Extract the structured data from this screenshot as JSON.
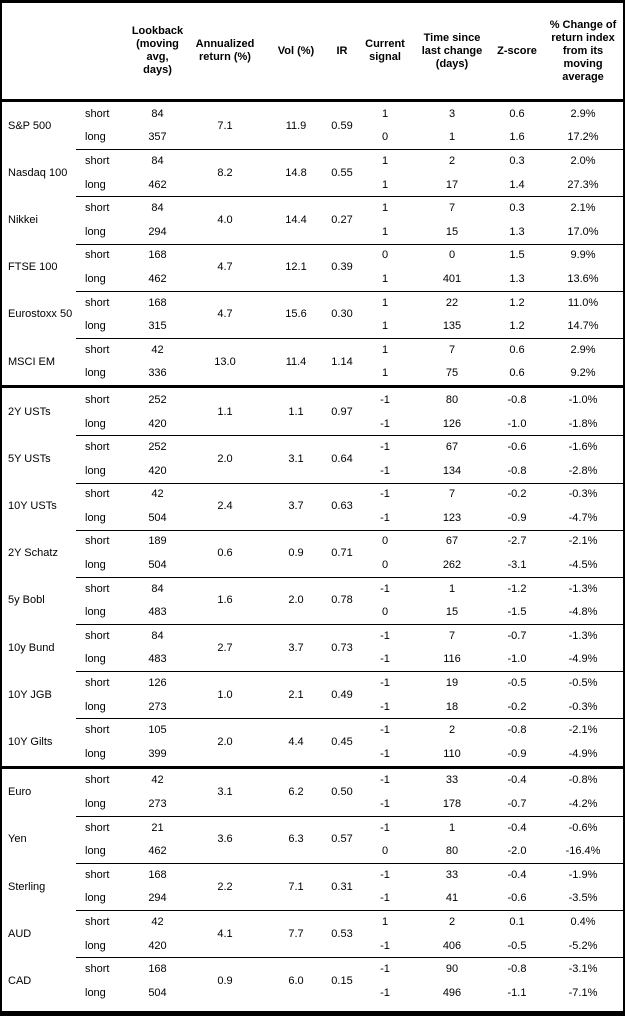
{
  "table": {
    "headers": [
      "",
      "",
      "Lookback (moving avg, days)",
      "Annualized return (%)",
      "Vol (%)",
      "IR",
      "Current signal",
      "Time since last change (days)",
      "Z-score",
      "% Change of return index from its moving average"
    ],
    "sections": [
      {
        "id": "equities",
        "assets": [
          {
            "name": "S&P 500",
            "annualized": "7.1",
            "vol": "11.9",
            "ir": "0.59",
            "rows": [
              {
                "horizon": "short",
                "lookback": "84",
                "signal": "1",
                "time": "3",
                "zscore": "0.6",
                "pct": "2.9%"
              },
              {
                "horizon": "long",
                "lookback": "357",
                "signal": "0",
                "time": "1",
                "zscore": "1.6",
                "pct": "17.2%"
              }
            ]
          },
          {
            "name": "Nasdaq 100",
            "annualized": "8.2",
            "vol": "14.8",
            "ir": "0.55",
            "rows": [
              {
                "horizon": "short",
                "lookback": "84",
                "signal": "1",
                "time": "2",
                "zscore": "0.3",
                "pct": "2.0%"
              },
              {
                "horizon": "long",
                "lookback": "462",
                "signal": "1",
                "time": "17",
                "zscore": "1.4",
                "pct": "27.3%"
              }
            ]
          },
          {
            "name": "Nikkei",
            "annualized": "4.0",
            "vol": "14.4",
            "ir": "0.27",
            "rows": [
              {
                "horizon": "short",
                "lookback": "84",
                "signal": "1",
                "time": "7",
                "zscore": "0.3",
                "pct": "2.1%"
              },
              {
                "horizon": "long",
                "lookback": "294",
                "signal": "1",
                "time": "15",
                "zscore": "1.3",
                "pct": "17.0%"
              }
            ]
          },
          {
            "name": "FTSE 100",
            "annualized": "4.7",
            "vol": "12.1",
            "ir": "0.39",
            "rows": [
              {
                "horizon": "short",
                "lookback": "168",
                "signal": "0",
                "time": "0",
                "zscore": "1.5",
                "pct": "9.9%"
              },
              {
                "horizon": "long",
                "lookback": "462",
                "signal": "1",
                "time": "401",
                "zscore": "1.3",
                "pct": "13.6%"
              }
            ]
          },
          {
            "name": "Eurostoxx 50",
            "annualized": "4.7",
            "vol": "15.6",
            "ir": "0.30",
            "rows": [
              {
                "horizon": "short",
                "lookback": "168",
                "signal": "1",
                "time": "22",
                "zscore": "1.2",
                "pct": "11.0%"
              },
              {
                "horizon": "long",
                "lookback": "315",
                "signal": "1",
                "time": "135",
                "zscore": "1.2",
                "pct": "14.7%"
              }
            ]
          },
          {
            "name": "MSCI EM",
            "annualized": "13.0",
            "vol": "11.4",
            "ir": "1.14",
            "rows": [
              {
                "horizon": "short",
                "lookback": "42",
                "signal": "1",
                "time": "7",
                "zscore": "0.6",
                "pct": "2.9%"
              },
              {
                "horizon": "long",
                "lookback": "336",
                "signal": "1",
                "time": "75",
                "zscore": "0.6",
                "pct": "9.2%"
              }
            ]
          }
        ]
      },
      {
        "id": "bonds",
        "assets": [
          {
            "name": "2Y USTs",
            "annualized": "1.1",
            "vol": "1.1",
            "ir": "0.97",
            "rows": [
              {
                "horizon": "short",
                "lookback": "252",
                "signal": "-1",
                "time": "80",
                "zscore": "-0.8",
                "pct": "-1.0%"
              },
              {
                "horizon": "long",
                "lookback": "420",
                "signal": "-1",
                "time": "126",
                "zscore": "-1.0",
                "pct": "-1.8%"
              }
            ]
          },
          {
            "name": "5Y USTs",
            "annualized": "2.0",
            "vol": "3.1",
            "ir": "0.64",
            "rows": [
              {
                "horizon": "short",
                "lookback": "252",
                "signal": "-1",
                "time": "67",
                "zscore": "-0.6",
                "pct": "-1.6%"
              },
              {
                "horizon": "long",
                "lookback": "420",
                "signal": "-1",
                "time": "134",
                "zscore": "-0.8",
                "pct": "-2.8%"
              }
            ]
          },
          {
            "name": "10Y USTs",
            "annualized": "2.4",
            "vol": "3.7",
            "ir": "0.63",
            "rows": [
              {
                "horizon": "short",
                "lookback": "42",
                "signal": "-1",
                "time": "7",
                "zscore": "-0.2",
                "pct": "-0.3%"
              },
              {
                "horizon": "long",
                "lookback": "504",
                "signal": "-1",
                "time": "123",
                "zscore": "-0.9",
                "pct": "-4.7%"
              }
            ]
          },
          {
            "name": "2Y Schatz",
            "annualized": "0.6",
            "vol": "0.9",
            "ir": "0.71",
            "rows": [
              {
                "horizon": "short",
                "lookback": "189",
                "signal": "0",
                "time": "67",
                "zscore": "-2.7",
                "pct": "-2.1%"
              },
              {
                "horizon": "long",
                "lookback": "504",
                "signal": "0",
                "time": "262",
                "zscore": "-3.1",
                "pct": "-4.5%"
              }
            ]
          },
          {
            "name": "5y Bobl",
            "annualized": "1.6",
            "vol": "2.0",
            "ir": "0.78",
            "rows": [
              {
                "horizon": "short",
                "lookback": "84",
                "signal": "-1",
                "time": "1",
                "zscore": "-1.2",
                "pct": "-1.3%"
              },
              {
                "horizon": "long",
                "lookback": "483",
                "signal": "0",
                "time": "15",
                "zscore": "-1.5",
                "pct": "-4.8%"
              }
            ]
          },
          {
            "name": "10y Bund",
            "annualized": "2.7",
            "vol": "3.7",
            "ir": "0.73",
            "rows": [
              {
                "horizon": "short",
                "lookback": "84",
                "signal": "-1",
                "time": "7",
                "zscore": "-0.7",
                "pct": "-1.3%"
              },
              {
                "horizon": "long",
                "lookback": "483",
                "signal": "-1",
                "time": "116",
                "zscore": "-1.0",
                "pct": "-4.9%"
              }
            ]
          },
          {
            "name": "10Y JGB",
            "annualized": "1.0",
            "vol": "2.1",
            "ir": "0.49",
            "rows": [
              {
                "horizon": "short",
                "lookback": "126",
                "signal": "-1",
                "time": "19",
                "zscore": "-0.5",
                "pct": "-0.5%"
              },
              {
                "horizon": "long",
                "lookback": "273",
                "signal": "-1",
                "time": "18",
                "zscore": "-0.2",
                "pct": "-0.3%"
              }
            ]
          },
          {
            "name": "10Y Gilts",
            "annualized": "2.0",
            "vol": "4.4",
            "ir": "0.45",
            "rows": [
              {
                "horizon": "short",
                "lookback": "105",
                "signal": "-1",
                "time": "2",
                "zscore": "-0.8",
                "pct": "-2.1%"
              },
              {
                "horizon": "long",
                "lookback": "399",
                "signal": "-1",
                "time": "110",
                "zscore": "-0.9",
                "pct": "-4.9%"
              }
            ]
          }
        ]
      },
      {
        "id": "fx",
        "assets": [
          {
            "name": "Euro",
            "annualized": "3.1",
            "vol": "6.2",
            "ir": "0.50",
            "rows": [
              {
                "horizon": "short",
                "lookback": "42",
                "signal": "-1",
                "time": "33",
                "zscore": "-0.4",
                "pct": "-0.8%"
              },
              {
                "horizon": "long",
                "lookback": "273",
                "signal": "-1",
                "time": "178",
                "zscore": "-0.7",
                "pct": "-4.2%"
              }
            ]
          },
          {
            "name": "Yen",
            "annualized": "3.6",
            "vol": "6.3",
            "ir": "0.57",
            "rows": [
              {
                "horizon": "short",
                "lookback": "21",
                "signal": "-1",
                "time": "1",
                "zscore": "-0.4",
                "pct": "-0.6%"
              },
              {
                "horizon": "long",
                "lookback": "462",
                "signal": "0",
                "time": "80",
                "zscore": "-2.0",
                "pct": "-16.4%"
              }
            ]
          },
          {
            "name": "Sterling",
            "annualized": "2.2",
            "vol": "7.1",
            "ir": "0.31",
            "rows": [
              {
                "horizon": "short",
                "lookback": "168",
                "signal": "-1",
                "time": "33",
                "zscore": "-0.4",
                "pct": "-1.9%"
              },
              {
                "horizon": "long",
                "lookback": "294",
                "signal": "-1",
                "time": "41",
                "zscore": "-0.6",
                "pct": "-3.5%"
              }
            ]
          },
          {
            "name": "AUD",
            "annualized": "4.1",
            "vol": "7.7",
            "ir": "0.53",
            "rows": [
              {
                "horizon": "short",
                "lookback": "42",
                "signal": "1",
                "time": "2",
                "zscore": "0.1",
                "pct": "0.4%"
              },
              {
                "horizon": "long",
                "lookback": "420",
                "signal": "-1",
                "time": "406",
                "zscore": "-0.5",
                "pct": "-5.2%"
              }
            ]
          },
          {
            "name": "CAD",
            "annualized": "0.9",
            "vol": "6.0",
            "ir": "0.15",
            "rows": [
              {
                "horizon": "short",
                "lookback": "168",
                "signal": "-1",
                "time": "90",
                "zscore": "-0.8",
                "pct": "-3.1%"
              },
              {
                "horizon": "long",
                "lookback": "504",
                "signal": "-1",
                "time": "496",
                "zscore": "-1.1",
                "pct": "-7.1%"
              }
            ]
          }
        ]
      }
    ]
  }
}
